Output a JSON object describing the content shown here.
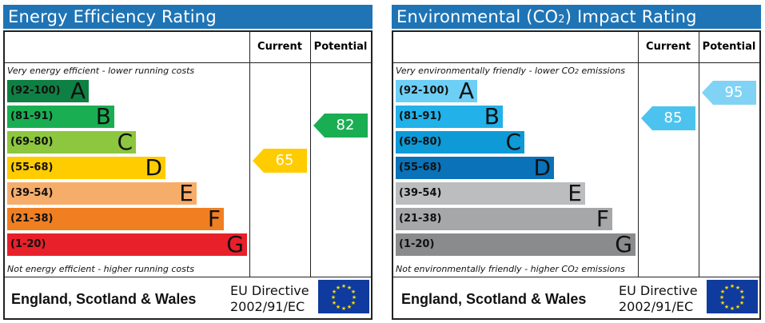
{
  "energy": {
    "title": "Energy Efficiency Rating",
    "col_current": "Current",
    "col_potential": "Potential",
    "top_note": "Very energy efficient - lower running costs",
    "bottom_note": "Not energy efficient - higher running costs",
    "bands": [
      {
        "range": "(92-100)",
        "letter": "A",
        "color": "#0f8043"
      },
      {
        "range": "(81-91)",
        "letter": "B",
        "color": "#1aae53"
      },
      {
        "range": "(69-80)",
        "letter": "C",
        "color": "#8dc63f"
      },
      {
        "range": "(55-68)",
        "letter": "D",
        "color": "#ffcc00"
      },
      {
        "range": "(39-54)",
        "letter": "E",
        "color": "#f7ad6a"
      },
      {
        "range": "(21-38)",
        "letter": "F",
        "color": "#f07f22"
      },
      {
        "range": "(1-20)",
        "letter": "G",
        "color": "#e8202a"
      }
    ],
    "current": {
      "value": "65",
      "color": "#ffcc00"
    },
    "potential": {
      "value": "82",
      "color": "#1aae53"
    },
    "region": "England, Scotland & Wales",
    "directive_line1": "EU Directive",
    "directive_line2": "2002/91/EC"
  },
  "environment": {
    "title_prefix": "Environmental (CO",
    "title_sub": "2",
    "title_suffix": ") Impact Rating",
    "col_current": "Current",
    "col_potential": "Potential",
    "top_note_prefix": "Very environmentally friendly - lower CO",
    "top_note_sub": "2",
    "top_note_suffix": " emissions",
    "bottom_note_prefix": "Not environmentally friendly - higher CO",
    "bottom_note_sub": "2",
    "bottom_note_suffix": " emissions",
    "bands": [
      {
        "range": "(92-100)",
        "letter": "A",
        "color": "#6dcff6"
      },
      {
        "range": "(81-91)",
        "letter": "B",
        "color": "#22b1e8"
      },
      {
        "range": "(69-80)",
        "letter": "C",
        "color": "#0d9ad7"
      },
      {
        "range": "(55-68)",
        "letter": "D",
        "color": "#0a72b8"
      },
      {
        "range": "(39-54)",
        "letter": "E",
        "color": "#bbbdbf"
      },
      {
        "range": "(21-38)",
        "letter": "F",
        "color": "#a5a7a9"
      },
      {
        "range": "(1-20)",
        "letter": "G",
        "color": "#898b8d"
      }
    ],
    "current": {
      "value": "85",
      "color": "#4cc3ee"
    },
    "potential": {
      "value": "95",
      "color": "#80d3f5"
    },
    "region": "England, Scotland & Wales",
    "directive_line1": "EU Directive",
    "directive_line2": "2002/91/EC"
  }
}
